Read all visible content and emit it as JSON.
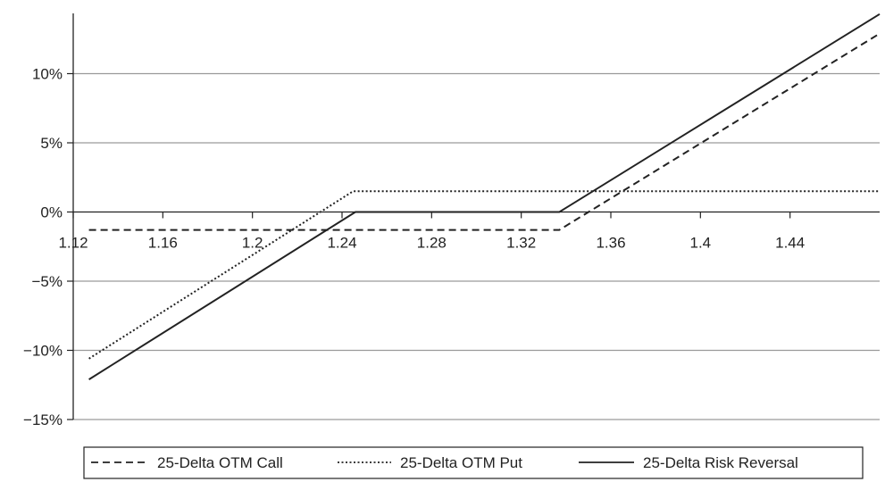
{
  "chart_data": {
    "type": "line",
    "title": "",
    "xlabel": "",
    "ylabel": "",
    "xlim": [
      1.12,
      1.48
    ],
    "ylim": [
      -15,
      15
    ],
    "x_ticks": [
      "1.12",
      "1.16",
      "1.2",
      "1.24",
      "1.28",
      "1.32",
      "1.36",
      "1.4",
      "1.44"
    ],
    "y_ticks": [
      "10%",
      "5%",
      "0%",
      "−5%",
      "−10%",
      "−15%"
    ],
    "grid": "horizontal",
    "legend_position": "bottom",
    "series": [
      {
        "name": "25-Delta OTM Call",
        "style": "dashed",
        "x": [
          1.127,
          1.337,
          1.48
        ],
        "y": [
          -1.3,
          -1.3,
          12.9
        ]
      },
      {
        "name": "25-Delta OTM Put",
        "style": "dotted",
        "x": [
          1.127,
          1.245,
          1.48
        ],
        "y": [
          -10.6,
          1.5,
          1.5
        ]
      },
      {
        "name": "25-Delta Risk Reversal",
        "style": "solid",
        "x": [
          1.127,
          1.246,
          1.337,
          1.48
        ],
        "y": [
          -12.1,
          0,
          0,
          14.3
        ]
      }
    ]
  }
}
